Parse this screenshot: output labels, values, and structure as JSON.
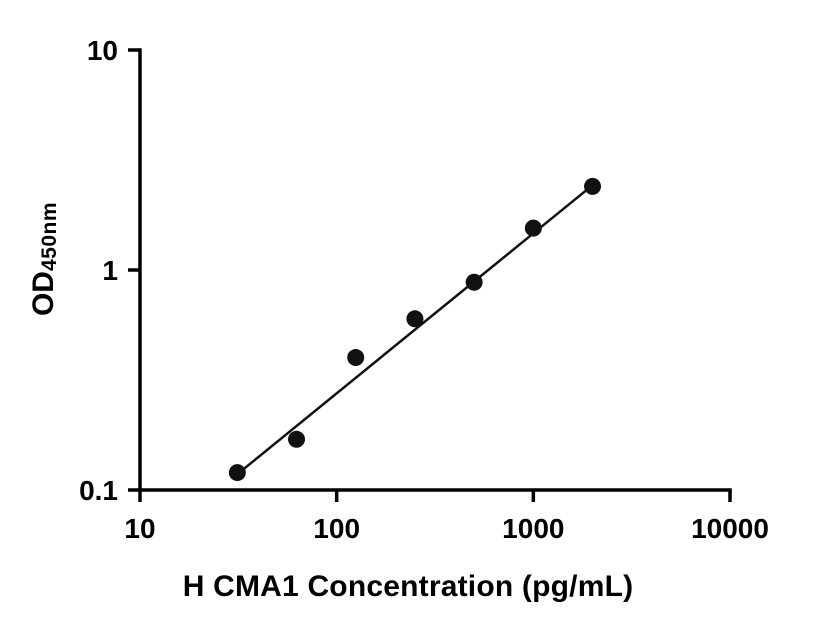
{
  "chart_data": {
    "type": "scatter",
    "title": "",
    "xlabel": "H CMA1 Concentration (pg/mL)",
    "ylabel": "OD",
    "ylabel_sub": "450nm",
    "xscale": "log",
    "yscale": "log",
    "xlim": [
      10,
      10000
    ],
    "ylim": [
      0.1,
      10
    ],
    "grid": false,
    "x_ticks": [
      {
        "value": 10,
        "label": "10"
      },
      {
        "value": 100,
        "label": "100"
      },
      {
        "value": 1000,
        "label": "1000"
      },
      {
        "value": 10000,
        "label": "10000"
      }
    ],
    "y_ticks": [
      {
        "value": 0.1,
        "label": "0.1"
      },
      {
        "value": 1,
        "label": "1"
      },
      {
        "value": 10,
        "label": "10"
      }
    ],
    "points": [
      {
        "x": 31.25,
        "y": 0.12
      },
      {
        "x": 62.5,
        "y": 0.17
      },
      {
        "x": 125,
        "y": 0.4
      },
      {
        "x": 250,
        "y": 0.6
      },
      {
        "x": 500,
        "y": 0.88
      },
      {
        "x": 1000,
        "y": 1.55
      },
      {
        "x": 2000,
        "y": 2.4
      }
    ],
    "fit_line": {
      "x": [
        31.25,
        2000
      ],
      "y": [
        0.118,
        2.43
      ]
    },
    "marker_color": "#111111",
    "line_color": "#111111",
    "axis_color": "#000000",
    "background": "#ffffff"
  }
}
